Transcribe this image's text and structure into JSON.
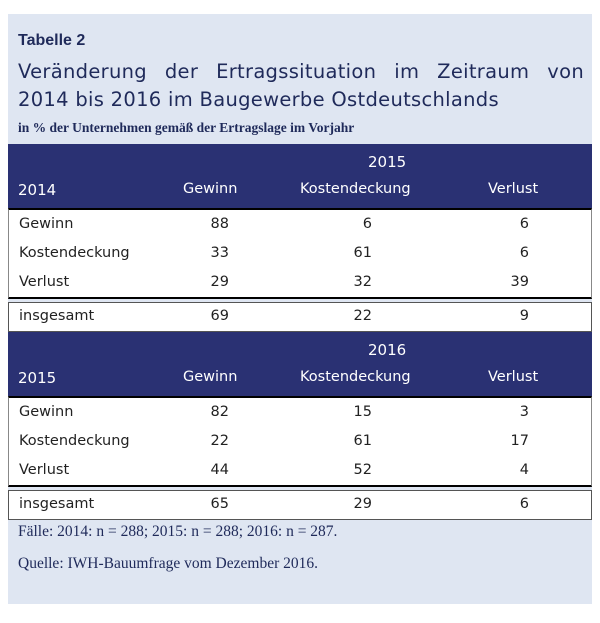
{
  "label": "Tabelle 2",
  "title_line1": "Veränderung der Ertragssituation im Zeitraum von",
  "title_line2": "2014 bis 2016 im Baugewerbe Ostdeutschlands",
  "subtitle": "in % der Unternehmen gemäß der Ertragslage im Vorjahr",
  "columns": [
    "Gewinn",
    "Kostendeckung",
    "Verlust"
  ],
  "blocks": [
    {
      "target_year": "2015",
      "base_year": "2014",
      "rows": [
        {
          "name": "Gewinn",
          "values": [
            "88",
            "6",
            "6"
          ]
        },
        {
          "name": "Kostendeckung",
          "values": [
            "33",
            "61",
            "6"
          ]
        },
        {
          "name": "Verlust",
          "values": [
            "29",
            "32",
            "39"
          ]
        }
      ],
      "total": {
        "name": "insgesamt",
        "values": [
          "69",
          "22",
          "9"
        ]
      }
    },
    {
      "target_year": "2016",
      "base_year": "2015",
      "rows": [
        {
          "name": "Gewinn",
          "values": [
            "82",
            "15",
            "3"
          ]
        },
        {
          "name": "Kostendeckung",
          "values": [
            "22",
            "61",
            "17"
          ]
        },
        {
          "name": "Verlust",
          "values": [
            "44",
            "52",
            "4"
          ]
        }
      ],
      "total": {
        "name": "insgesamt",
        "values": [
          "65",
          "29",
          "6"
        ]
      }
    }
  ],
  "footnote_cases": "Fälle:  2014: n = 288; 2015: n = 288; 2016: n = 287.",
  "footnote_source": "Quelle: IWH-Bauumfrage vom Dezember 2016.",
  "colors": {
    "panel": "#dfe6f2",
    "header": "#2a3173",
    "text": "#1f2a5a"
  }
}
